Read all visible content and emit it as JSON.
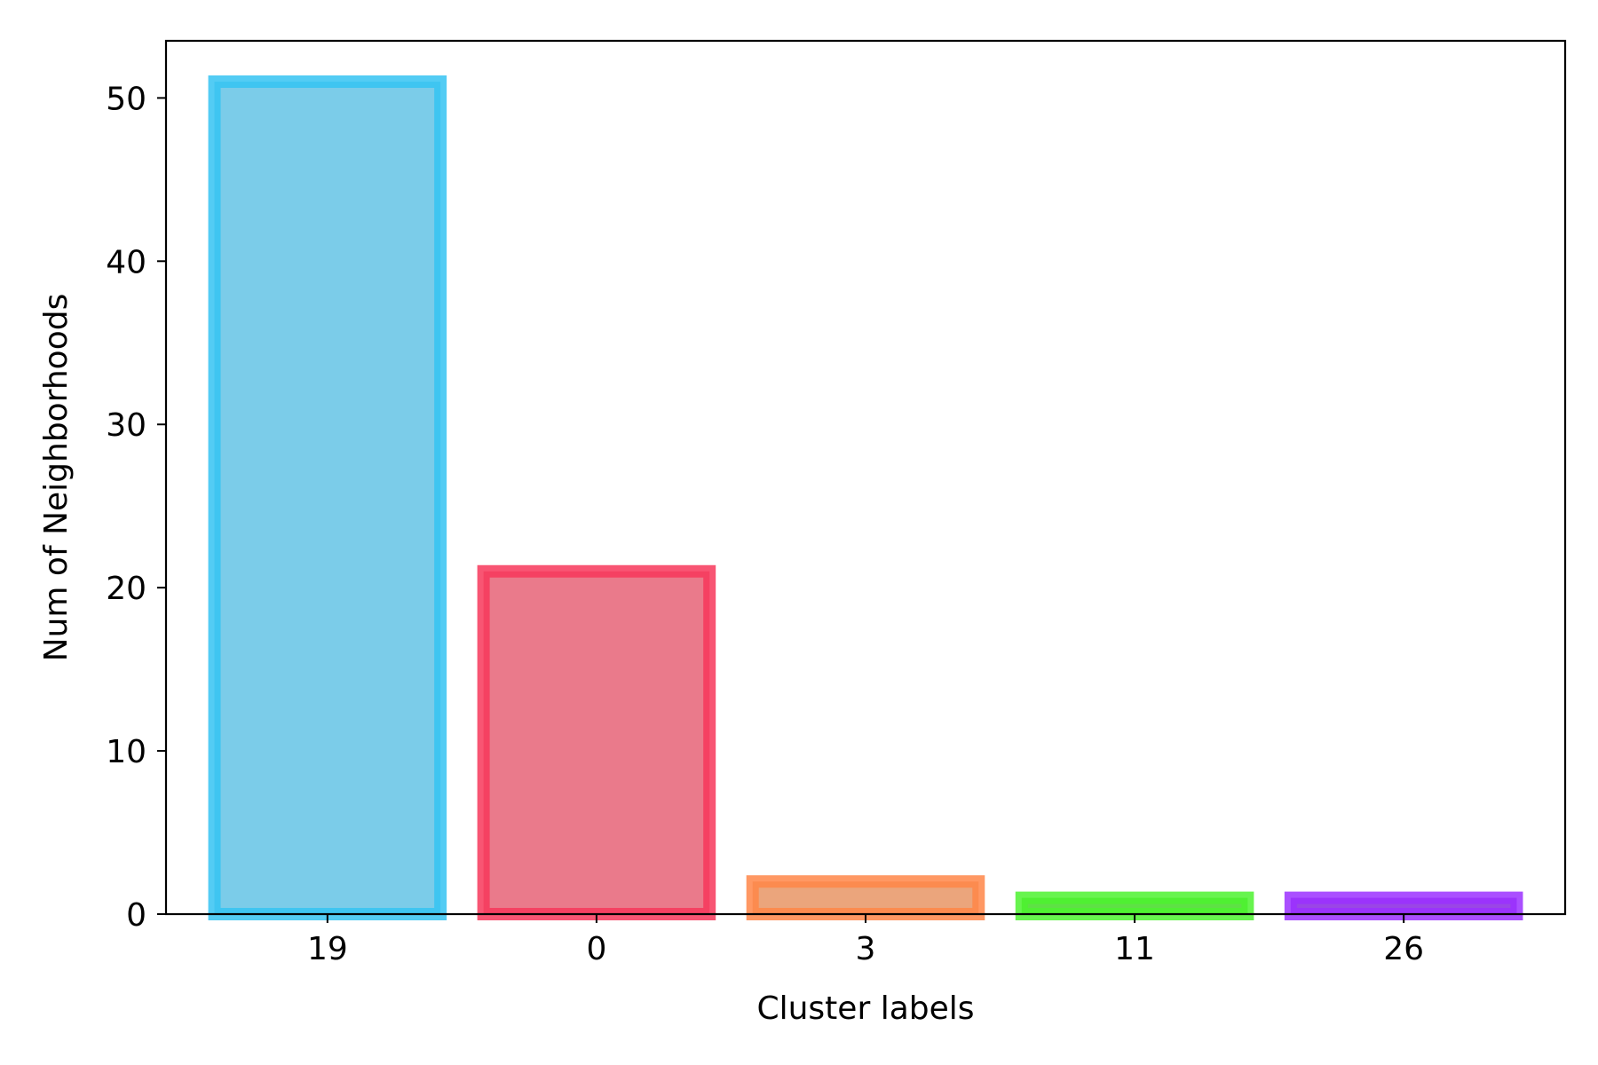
{
  "chart_data": {
    "type": "bar",
    "title": "",
    "xlabel": "Cluster labels",
    "ylabel": "Num of Neighborhoods",
    "categories": [
      "19",
      "0",
      "3",
      "11",
      "26"
    ],
    "values": [
      51,
      21,
      2,
      1,
      1
    ],
    "yticks": [
      0,
      10,
      20,
      30,
      40,
      50
    ],
    "ylim": [
      0,
      53.5
    ],
    "grid": false,
    "legend": "none",
    "colors": {
      "fills": [
        "#7bcce9",
        "#ea7a8b",
        "#eba57c",
        "#5fe046",
        "#9a46e6"
      ],
      "edges": [
        "#35c3f2",
        "#f7375a",
        "#ff8648",
        "#4cf22f",
        "#9b30ff"
      ]
    }
  }
}
